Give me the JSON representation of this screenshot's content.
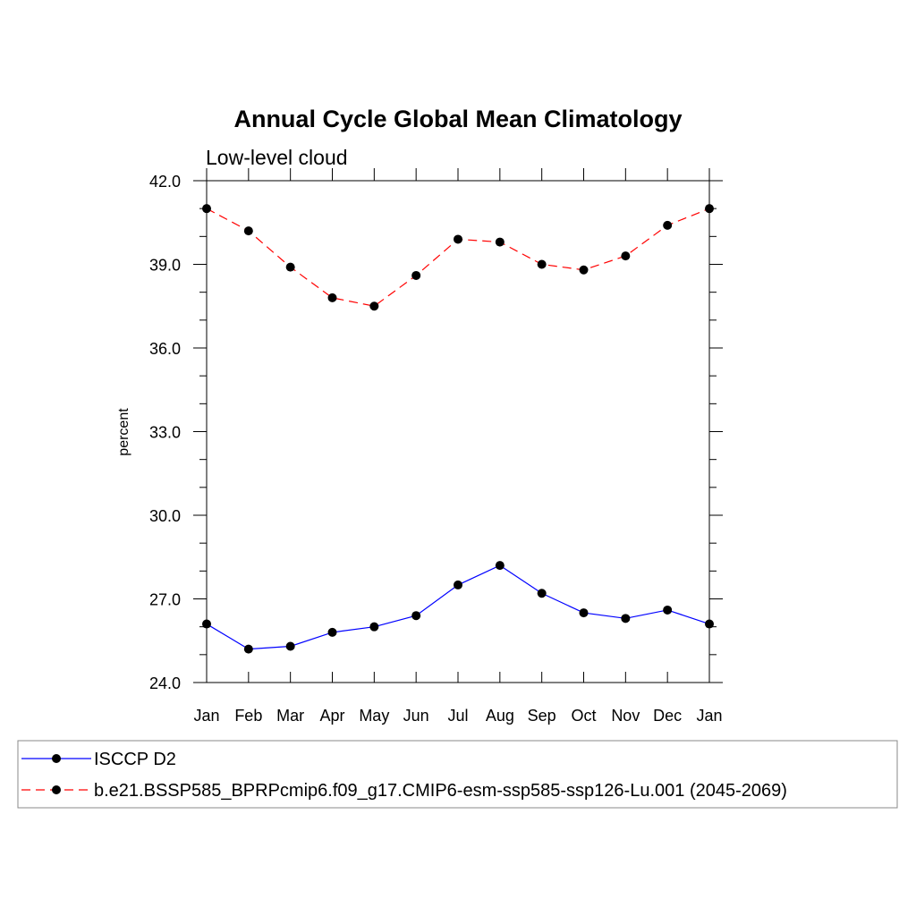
{
  "chart_data": {
    "type": "line",
    "title": "Annual Cycle Global Mean Climatology",
    "subtitle": "Low-level cloud",
    "ylabel": "percent",
    "xlabel": "",
    "categories": [
      "Jan",
      "Feb",
      "Mar",
      "Apr",
      "May",
      "Jun",
      "Jul",
      "Aug",
      "Sep",
      "Oct",
      "Nov",
      "Dec",
      "Jan"
    ],
    "ylim": [
      24.0,
      42.0
    ],
    "yticks": [
      "24.0",
      "27.0",
      "30.0",
      "33.0",
      "36.0",
      "39.0",
      "42.0"
    ],
    "series": [
      {
        "name": "ISCCP D2",
        "color": "#0000ff",
        "style": "solid",
        "values": [
          26.1,
          25.2,
          25.3,
          25.8,
          26.0,
          26.4,
          27.5,
          28.2,
          27.2,
          26.5,
          26.3,
          26.6,
          26.1
        ]
      },
      {
        "name": "b.e21.BSSP585_BPRPcmip6.f09_g17.CMIP6-esm-ssp585-ssp126-Lu.001 (2045-2069)",
        "color": "#ff0000",
        "style": "dashed",
        "values": [
          41.0,
          40.2,
          38.9,
          37.8,
          37.5,
          38.6,
          39.9,
          39.8,
          39.0,
          38.8,
          39.3,
          40.4,
          41.0
        ]
      }
    ],
    "grid": false,
    "legend_position": "bottom"
  }
}
